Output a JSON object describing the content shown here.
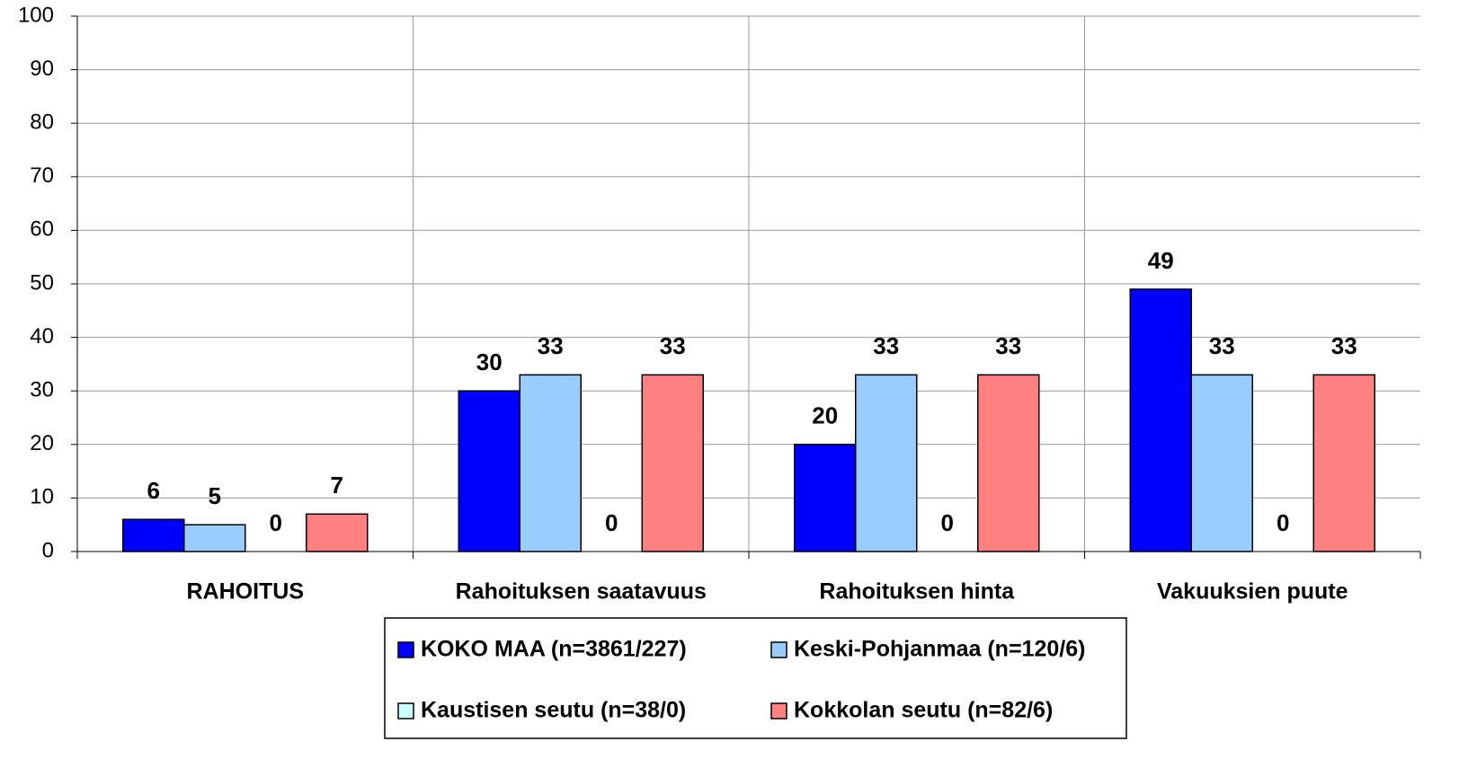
{
  "chart_data": {
    "type": "bar",
    "categories": [
      "RAHOITUS",
      "Rahoituksen saatavuus",
      "Rahoituksen hinta",
      "Vakuuksien puute"
    ],
    "series": [
      {
        "name": "KOKO MAA (n=3861/227)",
        "color": "#0000ff",
        "values": [
          6,
          30,
          20,
          49
        ]
      },
      {
        "name": "Keski-Pohjanmaa (n=120/6)",
        "color": "#99ccff",
        "values": [
          5,
          33,
          33,
          33
        ]
      },
      {
        "name": "Kaustisen seutu (n=38/0)",
        "color": "#ccffff",
        "values": [
          0,
          0,
          0,
          0
        ]
      },
      {
        "name": "Kokkolan seutu (n=82/6)",
        "color": "#ff8080",
        "values": [
          7,
          33,
          33,
          33
        ]
      }
    ],
    "ylim": [
      0,
      100
    ],
    "yticks": [
      0,
      10,
      20,
      30,
      40,
      50,
      60,
      70,
      80,
      90,
      100
    ],
    "grid": true,
    "legend": "bottom"
  }
}
